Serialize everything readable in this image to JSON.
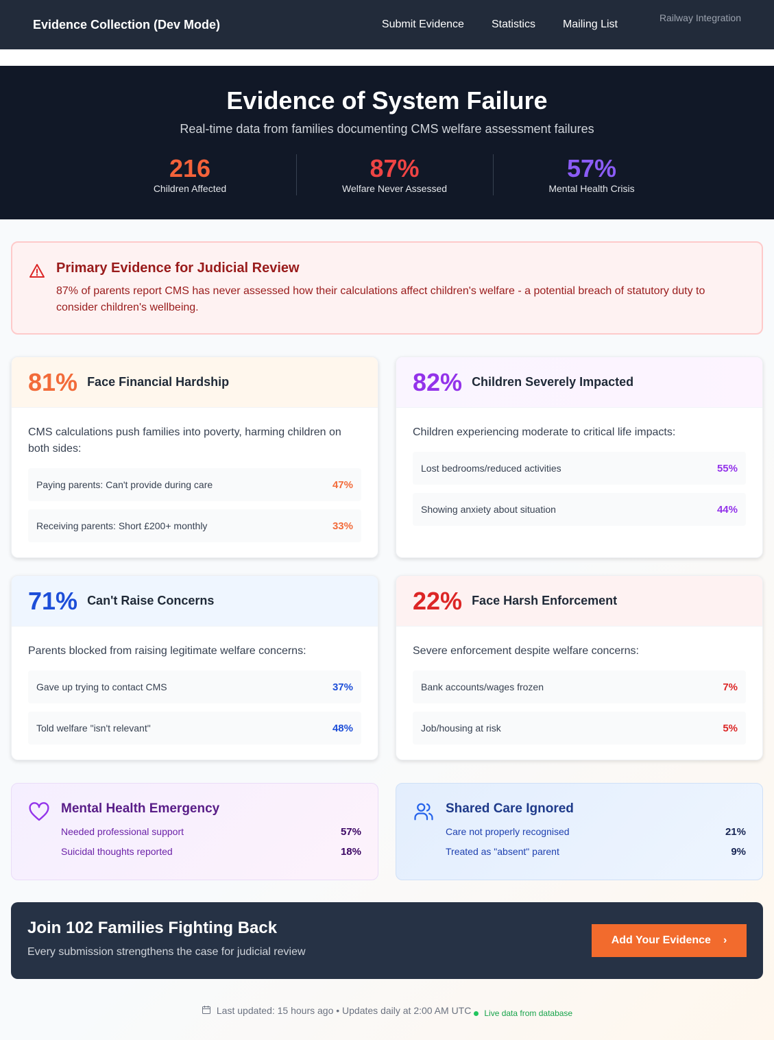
{
  "nav": {
    "brand": "Evidence Collection (Dev Mode)",
    "links": [
      "Submit Evidence",
      "Statistics",
      "Mailing List"
    ],
    "railway": "Railway Integration"
  },
  "hero": {
    "title": "Evidence of System Failure",
    "subtitle": "Real-time data from families documenting CMS welfare assessment failures",
    "stats": [
      {
        "value": "216",
        "label": "Children Affected",
        "color": "#f4623a"
      },
      {
        "value": "87%",
        "label": "Welfare Never Assessed",
        "color": "#ef4444"
      },
      {
        "value": "57%",
        "label": "Mental Health Crisis",
        "color": "#8b5cf6"
      }
    ]
  },
  "alert": {
    "title": "Primary Evidence for Judicial Review",
    "text": "87% of parents report CMS has never assessed how their calculations affect children's welfare - a potential breach of statutory duty to consider children's wellbeing."
  },
  "cards": [
    {
      "pct": "81%",
      "title": "Face Financial Hardship",
      "desc": "CMS calculations push families into poverty, harming children on both sides:",
      "color": "#f26b3a",
      "rows": [
        {
          "label": "Paying parents: Can't provide during care",
          "value": "47%"
        },
        {
          "label": "Receiving parents: Short £200+ monthly",
          "value": "33%"
        }
      ]
    },
    {
      "pct": "82%",
      "title": "Children Severely Impacted",
      "desc": "Children experiencing moderate to critical life impacts:",
      "color": "#9333ea",
      "rows": [
        {
          "label": "Lost bedrooms/reduced activities",
          "value": "55%"
        },
        {
          "label": "Showing anxiety about situation",
          "value": "44%"
        }
      ]
    },
    {
      "pct": "71%",
      "title": "Can't Raise Concerns",
      "desc": "Parents blocked from raising legitimate welfare concerns:",
      "color": "#1d4ed8",
      "rows": [
        {
          "label": "Gave up trying to contact CMS",
          "value": "37%"
        },
        {
          "label": "Told welfare \"isn't relevant\"",
          "value": "48%"
        }
      ]
    },
    {
      "pct": "22%",
      "title": "Face Harsh Enforcement",
      "desc": "Severe enforcement despite welfare concerns:",
      "color": "#dc2626",
      "rows": [
        {
          "label": "Bank accounts/wages frozen",
          "value": "7%"
        },
        {
          "label": "Job/housing at risk",
          "value": "5%"
        }
      ]
    }
  ],
  "mental": {
    "title": "Mental Health Emergency",
    "rows": [
      {
        "label": "Needed professional support",
        "value": "57%"
      },
      {
        "label": "Suicidal thoughts reported",
        "value": "18%"
      }
    ]
  },
  "shared": {
    "title": "Shared Care Ignored",
    "rows": [
      {
        "label": "Care not properly recognised",
        "value": "21%"
      },
      {
        "label": "Treated as \"absent\" parent",
        "value": "9%"
      }
    ]
  },
  "cta": {
    "title": "Join 102 Families Fighting Back",
    "subtitle": "Every submission strengthens the case for judicial review",
    "button": "Add Your Evidence"
  },
  "footer": {
    "updated": "Last updated: 15 hours ago • Updates daily at 2:00 AM UTC",
    "live": "Live data from database"
  }
}
